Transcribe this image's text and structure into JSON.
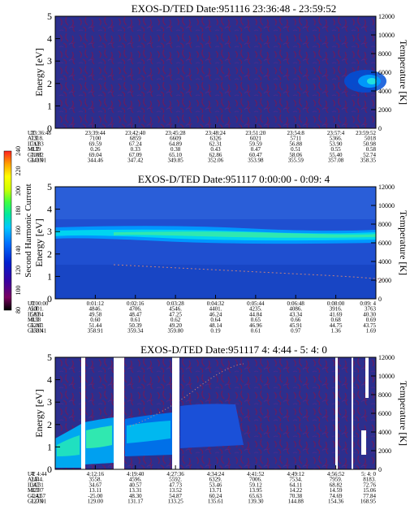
{
  "chart_data": [
    {
      "type": "heatmap",
      "title": "EXOS-D/TED   Date:951116  23:36:48 - 23:59:52",
      "ylabel": "Energy [eV]",
      "y2label": "Temperature [K]",
      "ylim": [
        0,
        5
      ],
      "y2lim": [
        0,
        12000
      ],
      "yticks": [
        "0",
        "1",
        "2",
        "3",
        "4",
        "5"
      ],
      "y2ticks": [
        "0",
        "2000",
        "4000",
        "6000",
        "8000",
        "10000",
        "12000"
      ],
      "rows": [
        {
          "label": "UT",
          "values": [
            "23:36:48",
            "23:39:44",
            "23:42:40",
            "23:45:28",
            "23:48:24",
            "23:51:20",
            "23:54:8",
            "23:57:4",
            "23:59:52"
          ]
        },
        {
          "label": "ALT",
          "values": [
            "7318.",
            "7100",
            "6859",
            "6609",
            "6326",
            "6021",
            "5711",
            "5366.",
            "5018"
          ]
        },
        {
          "label": "ILAT",
          "values": [
            "71.83",
            "69.59",
            "67.24",
            "64.89",
            "62.31",
            "59.59",
            "56.88",
            "53.90",
            "50.98"
          ]
        },
        {
          "label": "MLT",
          "values": [
            "0.19",
            "0.26",
            "0.33",
            "0.38",
            "0.43",
            "0.47",
            "0.51",
            "0.55",
            "0.58"
          ]
        },
        {
          "label": "GLAT",
          "values": [
            "70.82",
            "69.04",
            "67.09",
            "65.10",
            "62.86",
            "60.47",
            "58.06",
            "55.40",
            "52.74"
          ]
        },
        {
          "label": "GLON",
          "values": [
            "341.01",
            "344.46",
            "347.42",
            "349.85",
            "352.06",
            "353.98",
            "355.59",
            "357.08",
            "358.35"
          ]
        }
      ]
    },
    {
      "type": "heatmap",
      "title": "EXOS-D/TED   Date:951117  0:00:00 - 0:09: 4",
      "ylabel": "Energy [eV]",
      "y2label": "Temperature [K]",
      "ylim": [
        0,
        5
      ],
      "y2lim": [
        0,
        12000
      ],
      "yticks": [
        "0",
        "1",
        "2",
        "3",
        "4",
        "5"
      ],
      "y2ticks": [
        "0",
        "2000",
        "4000",
        "6000",
        "8000",
        "10000",
        "12000"
      ],
      "rows": [
        {
          "label": "UT",
          "values": [
            "0:00:00",
            "0:01:12",
            "0:02:16",
            "0:03:28",
            "0:04:32",
            "0:05:44",
            "0:06:48",
            "0:08:00",
            "0:09: 4"
          ]
        },
        {
          "label": "ALT",
          "values": [
            "5001.",
            "4846.",
            "4706.",
            "4546.",
            "4401.",
            "4235.",
            "4086.",
            "3916.",
            "3763"
          ]
        },
        {
          "label": "ILAT",
          "values": [
            "50.84",
            "49.58",
            "48.47",
            "47.25",
            "46.24",
            "44.84",
            "43.34",
            "41.69",
            "40.30"
          ]
        },
        {
          "label": "MLT",
          "values": [
            "0.58",
            "0.60",
            "0.61",
            "0.62",
            "0.64",
            "0.65",
            "0.66",
            "0.68",
            "0.69"
          ]
        },
        {
          "label": "GLAT",
          "values": [
            "52.61",
            "51.44",
            "50.39",
            "49.20",
            "48.14",
            "46.96",
            "45.91",
            "44.75",
            "43.75"
          ]
        },
        {
          "label": "GLON",
          "values": [
            "358.41",
            "358.91",
            "359.34",
            "359.80",
            "0.19",
            "0.61",
            "0.97",
            "1.36",
            "1.69"
          ]
        }
      ]
    },
    {
      "type": "heatmap",
      "title": "EXOS-D/TED   Date:951117  4: 4:44 - 5: 4: 0",
      "ylabel": "Energy [eV]",
      "y2label": "Temperature [K]",
      "ylim": [
        0,
        5
      ],
      "y2lim": [
        0,
        12000
      ],
      "yticks": [
        "0",
        "1",
        "2",
        "3",
        "4",
        "5"
      ],
      "y2ticks": [
        "0",
        "2000",
        "4000",
        "6000",
        "8000",
        "10000",
        "12000"
      ],
      "rows": [
        {
          "label": "UT",
          "values": [
            "4: 4:44",
            "4:12:16",
            "4:19:40",
            "4:27:36",
            "4:34:24",
            "4:41:52",
            "4:49:12",
            "4:56:52",
            "5: 4: 0"
          ]
        },
        {
          "label": "ALT",
          "values": [
            "2444.",
            "3558.",
            "4596.",
            "5592.",
            "6329.",
            "7006.",
            "7534.",
            "7959.",
            "8183."
          ]
        },
        {
          "label": "ILAT",
          "values": [
            "34.31",
            "34.67",
            "40.57",
            "47.73",
            "53.46",
            "59.12",
            "64.11",
            "68.82",
            "72.76"
          ]
        },
        {
          "label": "MLT",
          "values": [
            "12.87",
            "13.11",
            "13.31",
            "13.52",
            "13.71",
            "13.95",
            "14.22",
            "14.59",
            "15.06"
          ]
        },
        {
          "label": "GLAT",
          "values": [
            "-24.67",
            "-25.00",
            "48.30",
            "54.87",
            "60.24",
            "65.63",
            "70.38",
            "74.69",
            "77.84"
          ]
        },
        {
          "label": "GLON",
          "values": [
            "127.01",
            "129.00",
            "131.17",
            "133.25",
            "135.61",
            "139.30",
            "144.88",
            "154.36",
            "168.95"
          ]
        }
      ]
    }
  ],
  "colorbar": {
    "label": "Second Harmonic Current",
    "ticks": [
      "80",
      "100",
      "120",
      "140",
      "160",
      "180",
      "200",
      "220",
      "240"
    ],
    "colors": [
      "#000000",
      "#7a0060",
      "#3b00a0",
      "#0020d0",
      "#0070ff",
      "#00c8ff",
      "#00e8a0",
      "#40ff40",
      "#d0ff00",
      "#ffff00",
      "#ffa000",
      "#ff2020"
    ]
  }
}
